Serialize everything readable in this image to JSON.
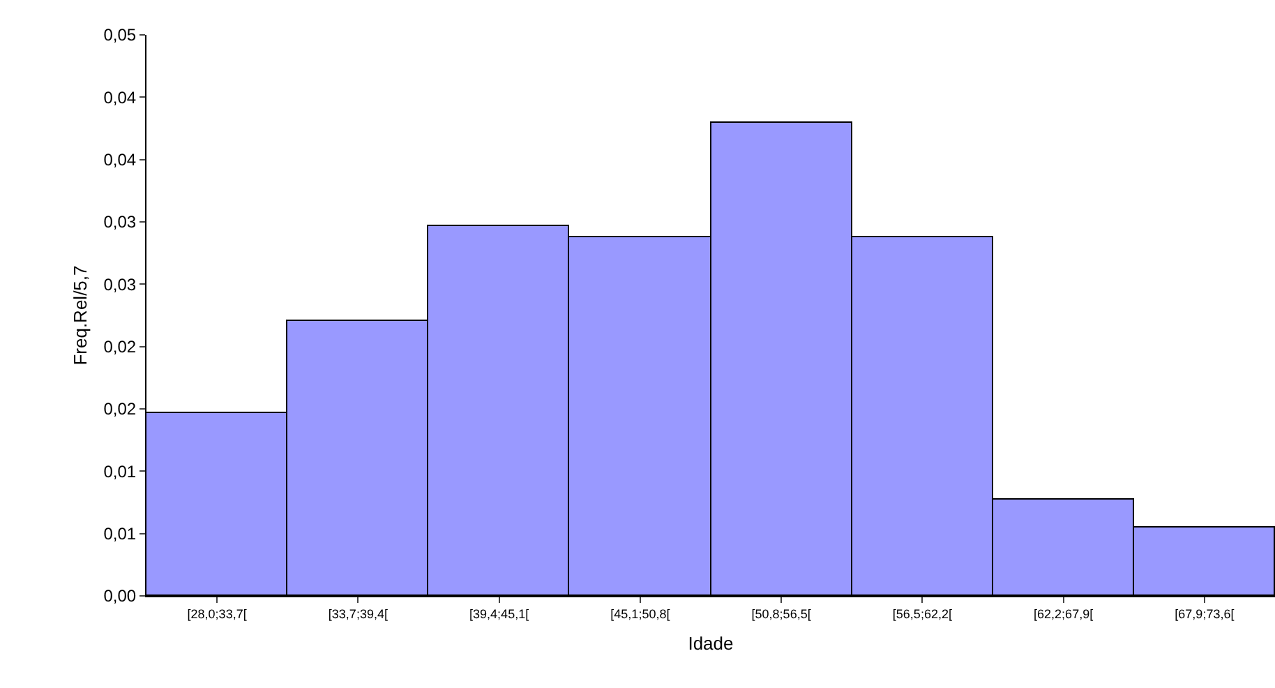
{
  "chart_data": {
    "type": "bar",
    "xlabel": "Idade",
    "ylabel": "Freq.Rel/5,7",
    "categories": [
      "[28,0;33,7[",
      "[33,7;39,4[",
      "[39,4;45,1[",
      "[45,1;50,8[",
      "[50,8;56,5[",
      "[56,5;62,2[",
      "[62,2;67,9[",
      "[67,9;73,6["
    ],
    "values": [
      0.0147,
      0.022,
      0.0297,
      0.0288,
      0.038,
      0.0288,
      0.0077,
      0.0055
    ],
    "color": "#9999ff",
    "ylim": [
      0,
      0.045
    ],
    "yticks": [
      {
        "value": 0,
        "label": "0,00"
      },
      {
        "value": 0.005,
        "label": "0,01"
      },
      {
        "value": 0.01,
        "label": "0,01"
      },
      {
        "value": 0.015,
        "label": "0,02"
      },
      {
        "value": 0.02,
        "label": "0,02"
      },
      {
        "value": 0.025,
        "label": "0,03"
      },
      {
        "value": 0.03,
        "label": "0,03"
      },
      {
        "value": 0.035,
        "label": "0,04"
      },
      {
        "value": 0.04,
        "label": "0,04"
      },
      {
        "value": 0.045,
        "label": "0,05"
      }
    ],
    "grid": false
  }
}
